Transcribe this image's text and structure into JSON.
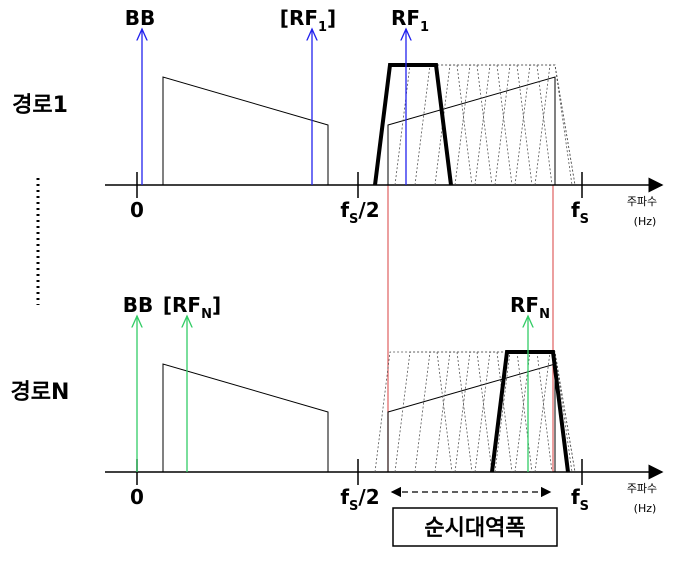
{
  "panels": [
    {
      "path_label": "경로1",
      "arrows": [
        {
          "main": "BB"
        },
        {
          "main": "[RF",
          "sub": "1",
          "tail": "]"
        },
        {
          "main": "RF",
          "sub": "1"
        }
      ],
      "axis": {
        "zero": "0",
        "half": {
          "main": "f",
          "sub": "S",
          "tail": "/2"
        },
        "fs": {
          "main": "f",
          "sub": "S"
        },
        "unit": "주파수",
        "unit2": "(Hz)"
      }
    },
    {
      "path_label": "경로N",
      "arrows": [
        {
          "main": "BB"
        },
        {
          "main": "[RF",
          "sub": "N",
          "tail": "]"
        },
        {
          "main": "RF",
          "sub": "N"
        }
      ],
      "axis": {
        "zero": "0",
        "half": {
          "main": "f",
          "sub": "S",
          "tail": "/2"
        },
        "fs": {
          "main": "f",
          "sub": "S"
        },
        "unit": "주파수",
        "unit2": "(Hz)"
      }
    }
  ],
  "bandwidth_label": "순시대역폭"
}
